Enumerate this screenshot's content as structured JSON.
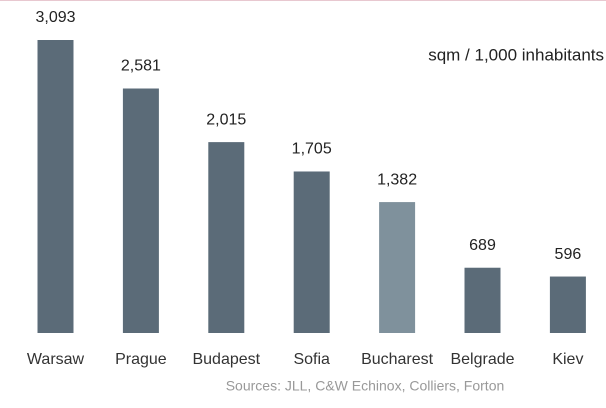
{
  "chart_data": {
    "type": "bar",
    "annotation": "sqm / 1,000 inhabitants",
    "source": "Sources: JLL, C&W Echinox, Colliers, Forton",
    "categories": [
      "Warsaw",
      "Prague",
      "Budapest",
      "Sofia",
      "Bucharest",
      "Belgrade",
      "Kiev"
    ],
    "values": [
      3093,
      2581,
      2015,
      1705,
      1382,
      689,
      596
    ],
    "value_labels": [
      "3,093",
      "2,581",
      "2,015",
      "1,705",
      "1,382",
      "689",
      "596"
    ],
    "colors": [
      "#5b6b78",
      "#5b6b78",
      "#5b6b78",
      "#5b6b78",
      "#7f919c",
      "#5b6b78",
      "#5b6b78"
    ]
  }
}
